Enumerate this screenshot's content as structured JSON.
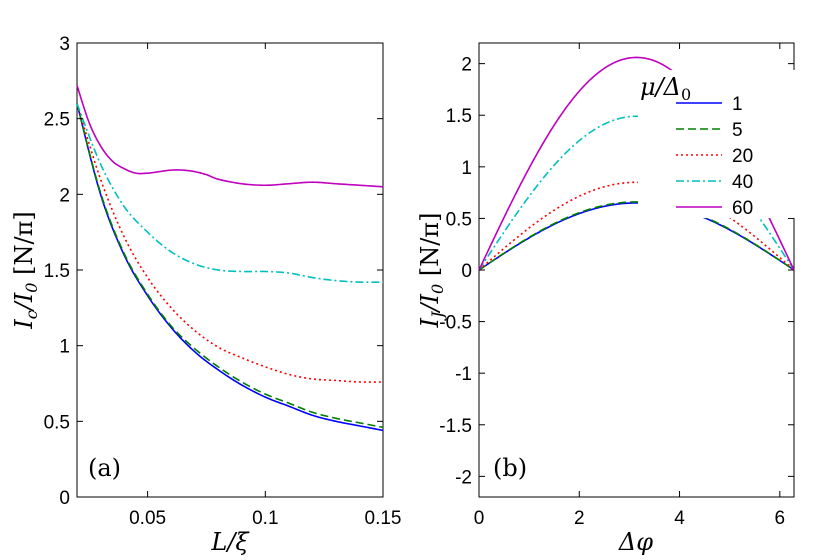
{
  "chart_data": [
    {
      "type": "line",
      "panel_label": "(a)",
      "xlabel": "L/ξ",
      "ylabel": "I_c/I_0 [N/π]",
      "ylabel_parts": {
        "main": "I",
        "main_sub": "c",
        "mid": "/I",
        "mid_sub": "0",
        "tail": " [N/π]"
      },
      "xlim": [
        0.02,
        0.15
      ],
      "ylim": [
        0,
        3
      ],
      "xticks": [
        0.05,
        0.1,
        0.15
      ],
      "xtick_labels": [
        "0.05",
        "0.1",
        "0.15"
      ],
      "yticks": [
        0,
        0.5,
        1,
        1.5,
        2,
        2.5,
        3
      ],
      "ytick_labels": [
        "0",
        "0.5",
        "1",
        "1.5",
        "2",
        "2.5",
        "3"
      ],
      "series": [
        {
          "name": "1",
          "color": "#0000ff",
          "dash": "solid",
          "x": [
            0.02,
            0.03,
            0.04,
            0.05,
            0.06,
            0.07,
            0.08,
            0.09,
            0.1,
            0.11,
            0.12,
            0.13,
            0.14,
            0.15
          ],
          "y": [
            2.6,
            2.0,
            1.6,
            1.33,
            1.12,
            0.96,
            0.84,
            0.74,
            0.66,
            0.6,
            0.54,
            0.5,
            0.47,
            0.44
          ]
        },
        {
          "name": "5",
          "color": "#008000",
          "dash": "dashed",
          "x": [
            0.02,
            0.03,
            0.04,
            0.05,
            0.06,
            0.07,
            0.08,
            0.09,
            0.1,
            0.11,
            0.12,
            0.13,
            0.14,
            0.15
          ],
          "y": [
            2.6,
            2.01,
            1.61,
            1.34,
            1.13,
            0.98,
            0.86,
            0.76,
            0.68,
            0.62,
            0.56,
            0.52,
            0.49,
            0.46
          ]
        },
        {
          "name": "20",
          "color": "#ff0000",
          "dash": "dotted",
          "x": [
            0.02,
            0.03,
            0.04,
            0.05,
            0.06,
            0.07,
            0.08,
            0.09,
            0.1,
            0.11,
            0.12,
            0.13,
            0.14,
            0.15
          ],
          "y": [
            2.6,
            2.1,
            1.72,
            1.45,
            1.25,
            1.1,
            0.99,
            0.92,
            0.86,
            0.81,
            0.78,
            0.77,
            0.76,
            0.76
          ]
        },
        {
          "name": "40",
          "color": "#00bfbf",
          "dash": "dashdot",
          "x": [
            0.02,
            0.03,
            0.04,
            0.05,
            0.06,
            0.07,
            0.08,
            0.09,
            0.1,
            0.11,
            0.12,
            0.13,
            0.14,
            0.15
          ],
          "y": [
            2.6,
            2.2,
            1.92,
            1.75,
            1.62,
            1.54,
            1.5,
            1.49,
            1.49,
            1.48,
            1.45,
            1.43,
            1.42,
            1.42
          ]
        },
        {
          "name": "60",
          "color": "#bf00bf",
          "dash": "solid",
          "x": [
            0.02,
            0.025,
            0.03,
            0.035,
            0.04,
            0.045,
            0.05,
            0.055,
            0.06,
            0.065,
            0.07,
            0.075,
            0.08,
            0.09,
            0.1,
            0.11,
            0.12,
            0.13,
            0.14,
            0.15
          ],
          "y": [
            2.72,
            2.48,
            2.32,
            2.22,
            2.17,
            2.14,
            2.14,
            2.15,
            2.16,
            2.16,
            2.15,
            2.13,
            2.1,
            2.07,
            2.06,
            2.07,
            2.08,
            2.07,
            2.06,
            2.05
          ]
        }
      ]
    },
    {
      "type": "line",
      "panel_label": "(b)",
      "xlabel": "Δφ",
      "ylabel": "I_J/I_0 [N/π]",
      "ylabel_parts": {
        "main": "I",
        "main_sub": "J",
        "mid": "/I",
        "mid_sub": "0",
        "tail": " [N/π]"
      },
      "xlim": [
        0,
        6.283
      ],
      "ylim": [
        -2.2,
        2.2
      ],
      "xticks": [
        0,
        2,
        4,
        6
      ],
      "xtick_labels": [
        "0",
        "2",
        "4",
        "6"
      ],
      "yticks": [
        -2,
        -1.5,
        -1,
        -0.5,
        0,
        0.5,
        1,
        1.5,
        2
      ],
      "ytick_labels": [
        "-2",
        "-1.5",
        "-1",
        "-0.5",
        "0",
        "0.5",
        "1",
        "1.5",
        "2"
      ],
      "legend": {
        "title": "μ/Δ0",
        "title_parts": {
          "main": "μ/Δ",
          "sub": "0"
        },
        "placement": "top-right"
      },
      "series": [
        {
          "name": "1",
          "color": "#0000ff",
          "dash": "solid",
          "peak": 0.65
        },
        {
          "name": "5",
          "color": "#008000",
          "dash": "dashed",
          "peak": 0.66
        },
        {
          "name": "20",
          "color": "#ff0000",
          "dash": "dotted",
          "peak": 0.85
        },
        {
          "name": "40",
          "color": "#00bfbf",
          "dash": "dashdot",
          "peak": 1.49
        },
        {
          "name": "60",
          "color": "#bf00bf",
          "dash": "solid",
          "peak": 2.06
        }
      ]
    }
  ]
}
